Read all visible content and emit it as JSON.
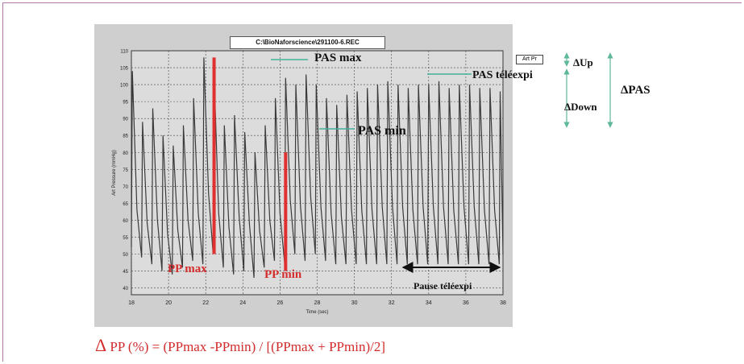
{
  "window": {
    "file_title": "C:\\BioNaforscience\\291100-6.REC",
    "legend_label": "Art Pr"
  },
  "annotations": {
    "pas_max": "PAS max",
    "pas_min": "PAS min",
    "pas_teleexpi": "PAS téléexpi",
    "pp_max": "PP max",
    "pp_min": "PP min",
    "pause": "Pause téléexpi",
    "delta_up": "ΔUp",
    "delta_down": "ΔDown",
    "delta_pas": "ΔPAS"
  },
  "formula": {
    "delta": "Δ",
    "text": " PP (%) = (PPmax -PPmin) / [(PPmax + PPmin)/2]"
  },
  "colors": {
    "trace": "#3a3a3a",
    "highlight": "#e03030",
    "marker_line": "#44b09a",
    "arrow_green": "#5fb89a"
  },
  "chart_data": {
    "type": "line",
    "title": "",
    "xlabel": "Time (sec)",
    "ylabel": "Art Pressure (mmHg)",
    "xlim": [
      18,
      38
    ],
    "ylim": [
      38,
      110
    ],
    "xticks": [
      18,
      20,
      22,
      24,
      26,
      28,
      30,
      32,
      34,
      36,
      38
    ],
    "yticks": [
      40,
      45,
      50,
      55,
      60,
      65,
      70,
      75,
      80,
      85,
      90,
      95,
      100,
      105,
      110
    ],
    "grid": true,
    "series": [
      {
        "name": "Art Pr",
        "x": [
          18.0,
          18.05,
          18.3,
          18.55,
          18.6,
          18.85,
          19.1,
          19.15,
          19.4,
          19.65,
          19.7,
          19.95,
          20.2,
          20.25,
          20.5,
          20.75,
          20.8,
          21.05,
          21.3,
          21.35,
          21.6,
          21.85,
          21.9,
          22.15,
          22.4,
          22.45,
          22.7,
          22.95,
          23.0,
          23.25,
          23.5,
          23.55,
          23.8,
          24.05,
          24.1,
          24.35,
          24.6,
          24.65,
          24.9,
          25.15,
          25.2,
          25.45,
          25.7,
          25.75,
          26.0,
          26.25,
          26.3,
          26.55,
          26.8,
          26.85,
          27.1,
          27.35,
          27.4,
          27.65,
          27.9,
          27.95,
          28.2,
          28.45,
          28.5,
          28.75,
          29.0,
          29.05,
          29.3,
          29.55,
          29.6,
          29.85,
          30.1,
          30.15,
          30.4,
          30.65,
          30.7,
          30.95,
          31.2,
          31.25,
          31.5,
          31.75,
          31.8,
          32.05,
          32.3,
          32.35,
          32.6,
          32.85,
          32.9,
          33.15,
          33.4,
          33.45,
          33.7,
          33.95,
          34.0,
          34.25,
          34.5,
          34.55,
          34.8,
          35.05,
          35.1,
          35.35,
          35.6,
          35.65,
          35.9,
          36.15,
          36.2,
          36.45,
          36.7,
          36.75,
          37.0,
          37.25,
          37.3,
          37.55,
          37.8,
          37.85,
          38.0
        ],
        "y": [
          52,
          104,
          63,
          49,
          89,
          59,
          47,
          93,
          60,
          45,
          85,
          56,
          44,
          82,
          57,
          46,
          88,
          60,
          48,
          96,
          62,
          47,
          108,
          68,
          50,
          103,
          62,
          46,
          88,
          58,
          44,
          91,
          61,
          45,
          86,
          59,
          43,
          80,
          57,
          46,
          88,
          60,
          48,
          96,
          62,
          47,
          102,
          66,
          50,
          100,
          64,
          48,
          103,
          67,
          50,
          100,
          64,
          48,
          96,
          62,
          47,
          94,
          61,
          47,
          97,
          63,
          47,
          98,
          63,
          47,
          99,
          63,
          47,
          100,
          64,
          47,
          101,
          64,
          47,
          100,
          64,
          47,
          99,
          63,
          47,
          100,
          64,
          47,
          100,
          64,
          47,
          101,
          64,
          47,
          99,
          63,
          47,
          100,
          64,
          47,
          100,
          64,
          47,
          99,
          63,
          47,
          99,
          63,
          47,
          98,
          50
        ]
      }
    ]
  }
}
